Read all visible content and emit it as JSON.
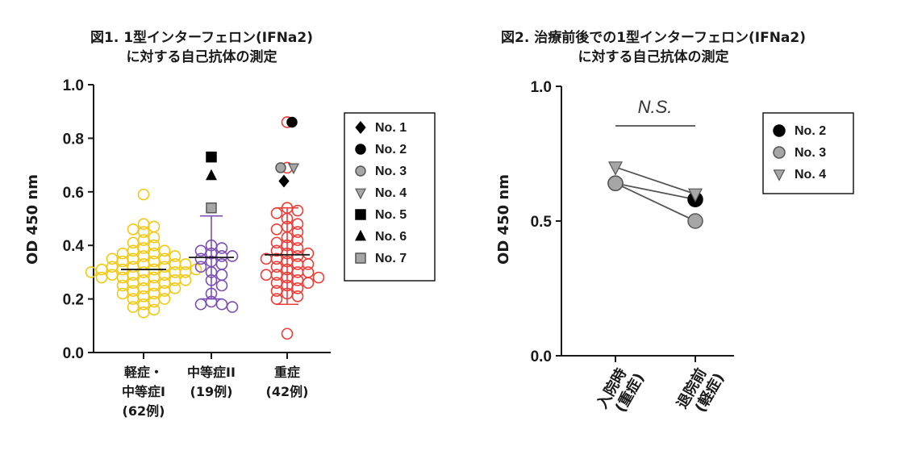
{
  "chart_data": [
    {
      "type": "scatter",
      "title_line1": "図1. 1型インターフェロン(IFNa2)",
      "title_line2": "に対する自己抗体の測定",
      "ylabel": "OD 450 nm",
      "ylim": [
        0,
        1.0
      ],
      "yticks": [
        "0.0",
        "0.2",
        "0.4",
        "0.6",
        "0.8",
        "1.0"
      ],
      "ytick_values": [
        0,
        0.2,
        0.4,
        0.6,
        0.8,
        1.0
      ],
      "categories": [
        {
          "lines": [
            "軽症・",
            "中等症I",
            "(62例)"
          ],
          "color": "#f2c811"
        },
        {
          "lines": [
            "中等症II",
            "(19例)"
          ],
          "color": "#7b4fb5"
        },
        {
          "lines": [
            "重症",
            "(42例)"
          ],
          "color": "#ef3b36"
        }
      ],
      "groups": [
        {
          "color": "#f2c811",
          "median": 0.31,
          "values": [
            0.59,
            0.48,
            0.47,
            0.46,
            0.45,
            0.43,
            0.42,
            0.41,
            0.4,
            0.39,
            0.38,
            0.38,
            0.37,
            0.37,
            0.36,
            0.36,
            0.35,
            0.35,
            0.35,
            0.34,
            0.34,
            0.33,
            0.33,
            0.33,
            0.32,
            0.32,
            0.32,
            0.31,
            0.31,
            0.31,
            0.31,
            0.3,
            0.3,
            0.3,
            0.3,
            0.29,
            0.29,
            0.29,
            0.28,
            0.28,
            0.28,
            0.27,
            0.27,
            0.27,
            0.26,
            0.26,
            0.25,
            0.25,
            0.24,
            0.24,
            0.23,
            0.23,
            0.22,
            0.22,
            0.21,
            0.2,
            0.2,
            0.19,
            0.18,
            0.17,
            0.16,
            0.15
          ]
        },
        {
          "color": "#7b4fb5",
          "median": 0.355,
          "error": [
            0.2,
            0.51
          ],
          "values": [
            0.4,
            0.39,
            0.38,
            0.37,
            0.36,
            0.36,
            0.35,
            0.34,
            0.33,
            0.32,
            0.3,
            0.29,
            0.27,
            0.25,
            0.22,
            0.19,
            0.18,
            0.18,
            0.17
          ]
        },
        {
          "color": "#ef3b36",
          "median": 0.365,
          "error": [
            0.18,
            0.54
          ],
          "values": [
            0.86,
            0.69,
            0.54,
            0.53,
            0.52,
            0.5,
            0.48,
            0.47,
            0.46,
            0.45,
            0.43,
            0.42,
            0.41,
            0.4,
            0.39,
            0.38,
            0.37,
            0.37,
            0.36,
            0.35,
            0.35,
            0.34,
            0.33,
            0.33,
            0.32,
            0.31,
            0.3,
            0.3,
            0.29,
            0.29,
            0.28,
            0.28,
            0.27,
            0.26,
            0.26,
            0.25,
            0.24,
            0.23,
            0.22,
            0.21,
            0.2,
            0.07
          ]
        }
      ],
      "highlighted": [
        {
          "patient": "No. 5",
          "group": 1,
          "value": 0.73
        },
        {
          "patient": "No. 6",
          "group": 1,
          "value": 0.66
        },
        {
          "patient": "No. 7",
          "group": 1,
          "value": 0.54
        },
        {
          "patient": "No. 2",
          "group": 2,
          "value": 0.86
        },
        {
          "patient": "No. 3",
          "group": 2,
          "value": 0.69
        },
        {
          "patient": "No. 4",
          "group": 2,
          "value": 0.69
        },
        {
          "patient": "No. 1",
          "group": 2,
          "value": 0.64
        }
      ],
      "legend": [
        {
          "label": "No. 1",
          "marker": "diamond",
          "color": "#000000"
        },
        {
          "label": "No. 2",
          "marker": "circle",
          "color": "#000000"
        },
        {
          "label": "No. 3",
          "marker": "circle",
          "color": "#a6a6a6"
        },
        {
          "label": "No. 4",
          "marker": "triangle-down",
          "color": "#a6a6a6"
        },
        {
          "label": "No. 5",
          "marker": "square",
          "color": "#000000"
        },
        {
          "label": "No. 6",
          "marker": "triangle-up",
          "color": "#000000"
        },
        {
          "label": "No. 7",
          "marker": "square",
          "color": "#a6a6a6"
        }
      ]
    },
    {
      "type": "line",
      "title_line1": "図2. 治療前後での1型インターフェロン(IFNa2)",
      "title_line2": "に対する自己抗体の測定",
      "ylabel": "OD 450 nm",
      "ylim": [
        0,
        1.0
      ],
      "yticks": [
        "0.0",
        "0.5",
        "1.0"
      ],
      "ytick_values": [
        0,
        0.5,
        1.0
      ],
      "categories": [
        {
          "lines": [
            "入院時",
            "(重症)"
          ]
        },
        {
          "lines": [
            "退院前",
            "(軽症)"
          ]
        }
      ],
      "annotation": "N.S.",
      "series": [
        {
          "name": "No. 2",
          "marker": "circle",
          "color": "#000000",
          "values": [
            0.64,
            0.58
          ]
        },
        {
          "name": "No. 3",
          "marker": "circle",
          "color": "#a6a6a6",
          "values": [
            0.64,
            0.5
          ]
        },
        {
          "name": "No. 4",
          "marker": "triangle-down",
          "color": "#a6a6a6",
          "values": [
            0.7,
            0.6
          ]
        }
      ]
    }
  ]
}
